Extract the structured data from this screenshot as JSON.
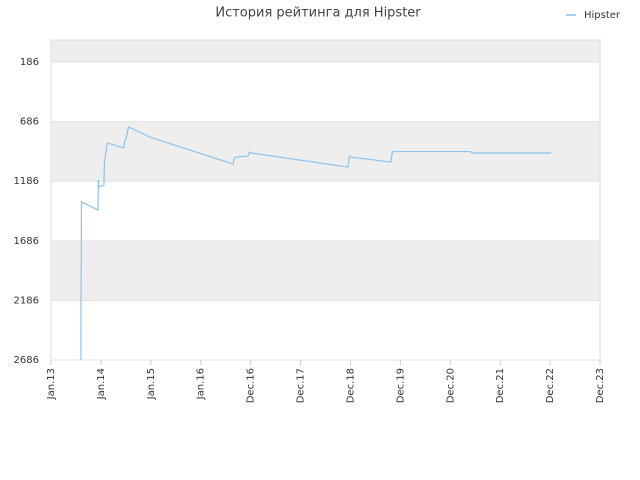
{
  "chart_data": {
    "type": "line",
    "title": "История рейтинга для Hipster",
    "x": [
      0.6,
      0.6,
      0.61,
      0.94,
      0.95,
      0.96,
      1.06,
      1.07,
      1.08,
      1.12,
      1.13,
      1.46,
      1.48,
      1.5,
      1.55,
      1.56,
      1.98,
      3.65,
      3.67,
      3.71,
      3.95,
      3.97,
      4.01,
      5.95,
      5.98,
      6.01,
      6.81,
      6.84,
      6.87,
      8.4,
      8.44,
      10.02
    ],
    "series": [
      {
        "name": "Hipster",
        "color": "#8cc3ee",
        "values": [
          2686,
          2418,
          1360,
          1428,
          1176,
          1235,
          1218,
          1025,
          1008,
          882,
          865,
          907,
          840,
          832,
          740,
          731,
          815,
          1042,
          991,
          983,
          975,
          941,
          949,
          1067,
          975,
          983,
          1025,
          941,
          937,
          937,
          949,
          949
        ]
      }
    ],
    "xlim": [
      0,
      11
    ],
    "xticks": [
      {
        "value": 0,
        "label": "Jan.13"
      },
      {
        "value": 1,
        "label": "Jan.14"
      },
      {
        "value": 2,
        "label": "Jan.15"
      },
      {
        "value": 3,
        "label": "Jan.16"
      },
      {
        "value": 4,
        "label": "Dec.16"
      },
      {
        "value": 5,
        "label": "Dec.17"
      },
      {
        "value": 6,
        "label": "Dec.18"
      },
      {
        "value": 7,
        "label": "Dec.19"
      },
      {
        "value": 8,
        "label": "Dec.20"
      },
      {
        "value": 9,
        "label": "Dec.21"
      },
      {
        "value": 10,
        "label": "Dec.22"
      },
      {
        "value": 11,
        "label": "Dec.23"
      }
    ],
    "ylim": [
      2686,
      1
    ],
    "yticks": [
      186,
      686,
      1186,
      1686,
      2186,
      2686
    ],
    "grid": true,
    "legend": "upper right"
  }
}
